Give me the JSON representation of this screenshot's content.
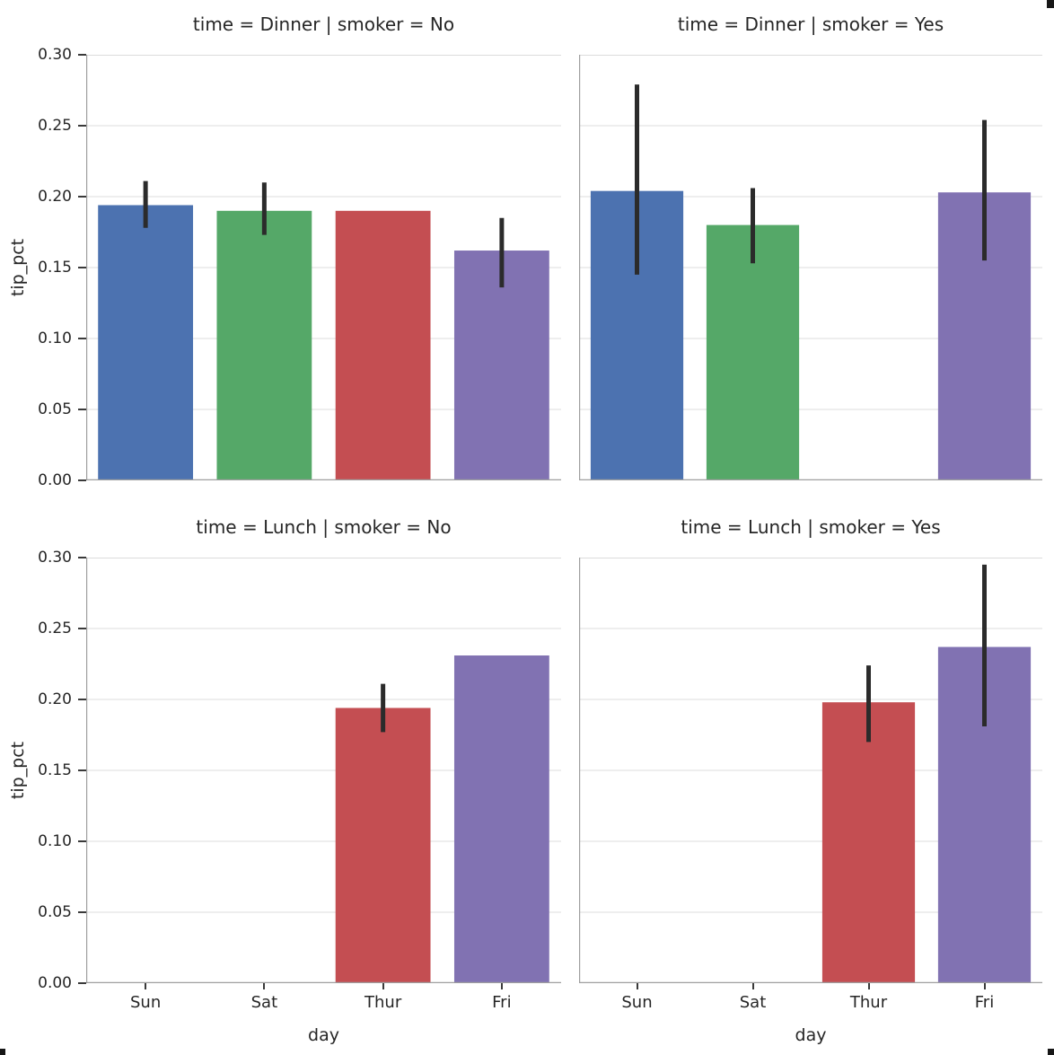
{
  "figure": {
    "background": "#ffffff",
    "text_color": "#262626"
  },
  "chart_data": {
    "type": "bar",
    "facet_grid": {
      "rows_var": "time",
      "cols_var": "smoker"
    },
    "categories": [
      "Sun",
      "Sat",
      "Thur",
      "Fri"
    ],
    "palette": {
      "Sun": "#4c72b0",
      "Sat": "#55a868",
      "Thur": "#c44e52",
      "Fri": "#8172b2"
    },
    "error_bar_color": "#2b2b2b",
    "grid_color": "#dcdcdc",
    "spine_color": "#9f9f9f",
    "xlabel": "day",
    "ylabel": "tip_pct",
    "ylim": [
      0,
      0.3
    ],
    "grid": true,
    "legend": null,
    "yticks": [
      {
        "value": 0.0,
        "label": "0.00"
      },
      {
        "value": 0.05,
        "label": "0.05"
      },
      {
        "value": 0.1,
        "label": "0.10"
      },
      {
        "value": 0.15,
        "label": "0.15"
      },
      {
        "value": 0.2,
        "label": "0.20"
      },
      {
        "value": 0.25,
        "label": "0.25"
      },
      {
        "value": 0.3,
        "label": "0.30"
      }
    ],
    "facets": [
      {
        "title": "time = Dinner | smoker = No",
        "row": 0,
        "col": 0,
        "bars": [
          {
            "day": "Sun",
            "value": 0.194,
            "err_low": 0.178,
            "err_high": 0.211
          },
          {
            "day": "Sat",
            "value": 0.19,
            "err_low": 0.173,
            "err_high": 0.21
          },
          {
            "day": "Thur",
            "value": 0.19,
            "err_low": null,
            "err_high": null
          },
          {
            "day": "Fri",
            "value": 0.162,
            "err_low": 0.136,
            "err_high": 0.185
          }
        ]
      },
      {
        "title": "time = Dinner | smoker = Yes",
        "row": 0,
        "col": 1,
        "bars": [
          {
            "day": "Sun",
            "value": 0.204,
            "err_low": 0.145,
            "err_high": 0.279
          },
          {
            "day": "Sat",
            "value": 0.18,
            "err_low": 0.153,
            "err_high": 0.206
          },
          {
            "day": "Thur",
            "value": null,
            "err_low": null,
            "err_high": null
          },
          {
            "day": "Fri",
            "value": 0.203,
            "err_low": 0.155,
            "err_high": 0.254
          }
        ]
      },
      {
        "title": "time = Lunch | smoker = No",
        "row": 1,
        "col": 0,
        "bars": [
          {
            "day": "Sun",
            "value": null,
            "err_low": null,
            "err_high": null
          },
          {
            "day": "Sat",
            "value": null,
            "err_low": null,
            "err_high": null
          },
          {
            "day": "Thur",
            "value": 0.194,
            "err_low": 0.177,
            "err_high": 0.211
          },
          {
            "day": "Fri",
            "value": 0.231,
            "err_low": null,
            "err_high": null
          }
        ]
      },
      {
        "title": "time = Lunch | smoker = Yes",
        "row": 1,
        "col": 1,
        "bars": [
          {
            "day": "Sun",
            "value": null,
            "err_low": null,
            "err_high": null
          },
          {
            "day": "Sat",
            "value": null,
            "err_low": null,
            "err_high": null
          },
          {
            "day": "Thur",
            "value": 0.198,
            "err_low": 0.17,
            "err_high": 0.224
          },
          {
            "day": "Fri",
            "value": 0.237,
            "err_low": 0.181,
            "err_high": 0.295
          }
        ]
      }
    ]
  }
}
